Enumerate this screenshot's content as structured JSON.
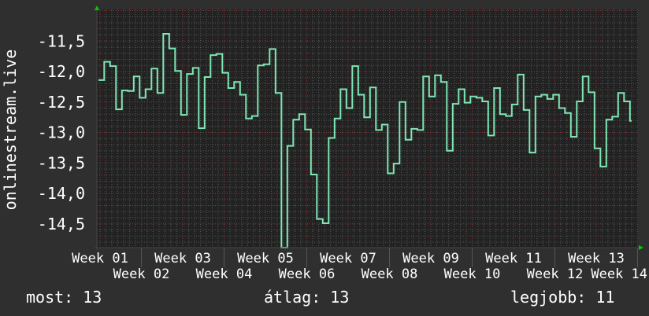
{
  "chart_data": {
    "type": "line",
    "step": true,
    "ylabel": "onlinestream.live",
    "xlabel": "",
    "ylim": [
      -14.89,
      -10.98
    ],
    "y_ticks": [
      {
        "value": -11.5,
        "label": "-11,5"
      },
      {
        "value": -12.0,
        "label": "-12,0"
      },
      {
        "value": -12.5,
        "label": "-12,5"
      },
      {
        "value": -13.0,
        "label": "-13,0"
      },
      {
        "value": -13.5,
        "label": "-13,5"
      },
      {
        "value": -14.0,
        "label": "-14,0"
      },
      {
        "value": -14.5,
        "label": "-14,5"
      }
    ],
    "x_ticks": [
      "Week 01",
      "Week 02",
      "Week 03",
      "Week 04",
      "Week 05",
      "Week 06",
      "Week 07",
      "Week 08",
      "Week 09",
      "Week 10",
      "Week 11",
      "Week 12",
      "Week 13",
      "Week 14"
    ],
    "grid": true,
    "values": [
      -12.14,
      -11.84,
      -11.91,
      -12.62,
      -12.31,
      -12.32,
      -12.08,
      -12.43,
      -12.29,
      -11.95,
      -12.35,
      -11.38,
      -11.62,
      -11.99,
      -12.71,
      -12.04,
      -11.94,
      -12.93,
      -12.09,
      -11.73,
      -11.71,
      -12.02,
      -12.27,
      -12.17,
      -12.38,
      -12.77,
      -12.73,
      -11.9,
      -11.88,
      -11.63,
      -12.35,
      -14.89,
      -13.22,
      -12.79,
      -12.7,
      -12.95,
      -13.69,
      -14.42,
      -14.49,
      -13.09,
      -12.77,
      -12.29,
      -12.6,
      -11.91,
      -12.38,
      -12.75,
      -12.26,
      -12.96,
      -12.87,
      -13.67,
      -13.51,
      -12.5,
      -13.12,
      -12.94,
      -12.96,
      -12.08,
      -12.41,
      -12.06,
      -12.17,
      -13.3,
      -12.53,
      -12.29,
      -12.51,
      -12.41,
      -12.43,
      -12.49,
      -13.05,
      -12.27,
      -12.7,
      -12.73,
      -12.54,
      -12.05,
      -12.63,
      -13.33,
      -12.41,
      -12.38,
      -12.45,
      -12.38,
      -12.6,
      -12.68,
      -13.07,
      -12.49,
      -12.08,
      -12.34,
      -13.26,
      -13.56,
      -12.79,
      -12.74,
      -12.35,
      -12.49,
      -12.81
    ],
    "colors": {
      "line": "#7ee8b4",
      "background": "#2f2f2f",
      "plot": "#222222",
      "grid_minor": "#555555",
      "grid_major": "#8a3a3a",
      "arrow": "#00cc00"
    }
  },
  "legend": {
    "current": "most: 13",
    "average": "átlag: 13",
    "best": "legjobb: 11"
  }
}
